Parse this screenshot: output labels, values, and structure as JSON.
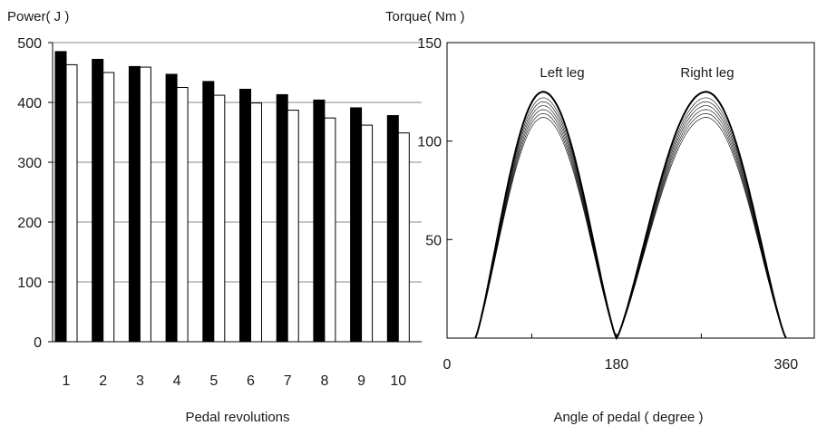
{
  "chart_data": [
    {
      "type": "bar",
      "ylabel": "Power( J )",
      "xlabel": "Pedal revolutions",
      "ylim": [
        0,
        500
      ],
      "yticks": [
        "0",
        "100",
        "200",
        "300",
        "400",
        "500"
      ],
      "categories": [
        "1",
        "2",
        "3",
        "4",
        "5",
        "6",
        "7",
        "8",
        "9",
        "10"
      ],
      "grid": "horizontal",
      "series": [
        {
          "color": "#000000",
          "values": [
            485,
            472,
            460,
            447,
            435,
            422,
            413,
            404,
            391,
            378
          ]
        },
        {
          "color": "#ffffff",
          "values": [
            463,
            450,
            459,
            425,
            412,
            399,
            387,
            374,
            362,
            349
          ]
        }
      ]
    },
    {
      "type": "line",
      "ylabel": "Torque( Nm )",
      "xlabel": "Angle of pedal ( degree )",
      "xlim": [
        0,
        390
      ],
      "ylim": [
        0,
        150
      ],
      "xticks": [
        "0",
        "180",
        "360"
      ],
      "yticks": [
        "50",
        "100",
        "150"
      ],
      "annotations": [
        "Left leg",
        "Right leg"
      ],
      "curve": {
        "color": "#000000",
        "x_start": 30,
        "x_mid": 180,
        "x_end": 360,
        "left_peak_x": 102,
        "right_peak_x": 275,
        "peaks_outer": 125,
        "peaks_inner": [
          122,
          120,
          118,
          116,
          114,
          112
        ]
      }
    }
  ]
}
